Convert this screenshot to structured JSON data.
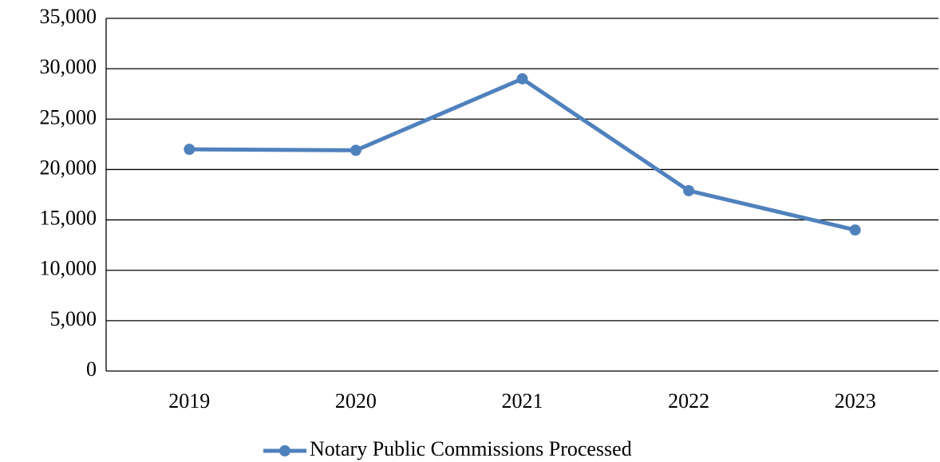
{
  "chart_data": {
    "type": "line",
    "categories": [
      "2019",
      "2020",
      "2021",
      "2022",
      "2023"
    ],
    "series": [
      {
        "name": "Notary Public Commissions Processed",
        "color": "#4f81bd",
        "values": [
          22000,
          21900,
          29000,
          17900,
          14000
        ]
      }
    ],
    "ylim": [
      0,
      35000
    ],
    "yticks": [
      0,
      {
        "value": 5000,
        "label": "5,000"
      },
      {
        "value": 10000,
        "label": "10,000"
      },
      {
        "value": 15000,
        "label": "15,000"
      },
      {
        "value": 20000,
        "label": "20,000"
      },
      {
        "value": 25000,
        "label": "25,000"
      },
      {
        "value": 30000,
        "label": "30,000"
      },
      {
        "value": 35000,
        "label": "35,000"
      }
    ],
    "grid": true,
    "legend": "bottom"
  }
}
